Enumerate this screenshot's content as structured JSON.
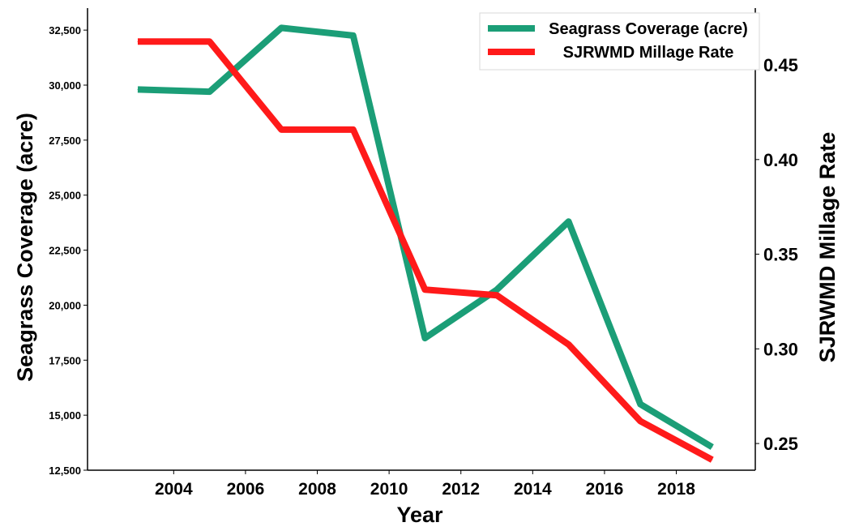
{
  "chart_data": {
    "type": "line",
    "x": [
      2003,
      2005,
      2007,
      2009,
      2011,
      2013,
      2015,
      2017,
      2019
    ],
    "series": [
      {
        "name": "Seagrass Coverage (acre)",
        "axis": "left",
        "color": "#1b9e77",
        "values": [
          29800,
          29700,
          32600,
          32250,
          18500,
          20700,
          23800,
          15500,
          13550
        ]
      },
      {
        "name": "SJRWMD Millage Rate",
        "axis": "right",
        "color": "#ff1a1a",
        "values": [
          null,
          null,
          null,
          null,
          null,
          null,
          null,
          null,
          null
        ],
        "points": [
          [
            2003,
            0.4623
          ],
          [
            2005,
            0.4623
          ],
          [
            2007,
            0.4158
          ],
          [
            2009,
            0.4158
          ],
          [
            2011,
            0.3313
          ],
          [
            2013,
            0.3283
          ],
          [
            2015,
            0.3023
          ],
          [
            2017,
            0.2618
          ],
          [
            2019,
            0.2414
          ]
        ]
      }
    ],
    "xlabel": "Year",
    "ylabel_left": "Seagrass Coverage (acre)",
    "ylabel_right": "SJRWMD Millage Rate",
    "x_ticks": [
      "2004",
      "2006",
      "2008",
      "2010",
      "2012",
      "2014",
      "2016",
      "2018"
    ],
    "y_left_ticks": [
      "12,500",
      "15,000",
      "17,500",
      "20,000",
      "22,500",
      "25,000",
      "27,500",
      "30,000",
      "32,500"
    ],
    "y_right_ticks": [
      "0.25",
      "0.30",
      "0.35",
      "0.40",
      "0.45"
    ],
    "xlim": [
      2001.6,
      2020.2
    ],
    "ylim_left": [
      12500,
      33500
    ],
    "ylim_right": [
      0.2359,
      0.48
    ],
    "legend": "top-right",
    "grid": false
  }
}
